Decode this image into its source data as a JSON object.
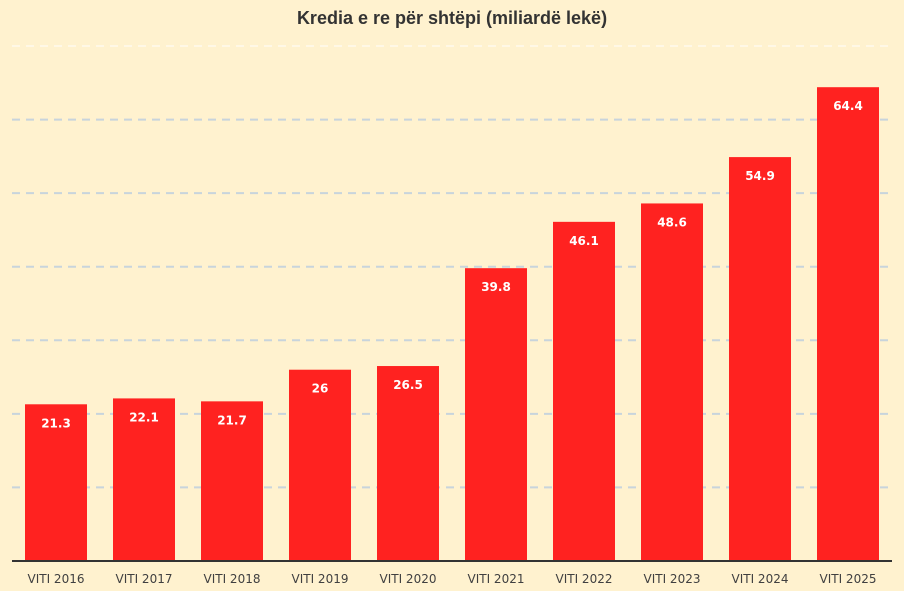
{
  "chart_data": {
    "type": "bar",
    "title": "Kredia e re për shtëpi (miliardë lekë)",
    "categories": [
      "VITI 2016",
      "VITI 2017",
      "VITI 2018",
      "VITI 2019",
      "VITI 2020",
      "VITI 2021",
      "VITI 2022",
      "VITI 2023",
      "VITI 2024",
      "VITI 2025"
    ],
    "values": [
      21.3,
      22.1,
      21.7,
      26,
      26.5,
      39.8,
      46.1,
      48.6,
      54.9,
      64.4
    ],
    "data_labels": [
      "21.3",
      "22.1",
      "21.7",
      "26",
      "26.5",
      "39.8",
      "46.1",
      "48.6",
      "54.9",
      "64.4"
    ],
    "xlabel": "",
    "ylabel": "",
    "ylim": [
      0,
      70
    ],
    "gridlines": [
      10,
      20,
      30,
      40,
      50,
      60,
      70
    ],
    "grid": true,
    "y_tick_labels_shown": false,
    "colors": {
      "bar": "#ff2220",
      "background": "#fff2cf",
      "grid": "#c8d4dc",
      "label": "#ffffff",
      "axis": "#333333"
    }
  }
}
